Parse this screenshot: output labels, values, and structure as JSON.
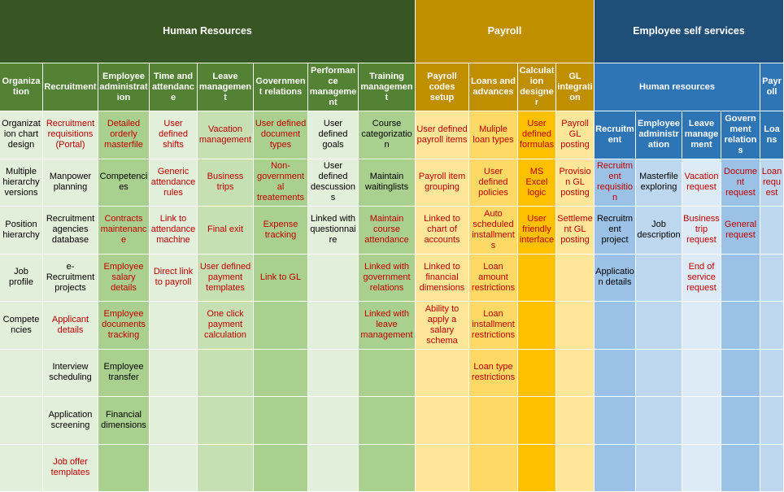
{
  "sections": [
    {
      "title": "Human Resources",
      "columns": [
        {
          "title": "Organization",
          "items": [
            "Organization chart design",
            "Multiple hierarchy versions",
            "Position hierarchy",
            "Job profile",
            "Competencies"
          ]
        },
        {
          "title": "Recruitment",
          "items": [
            "Recruitment requisitions (Portal)",
            "Manpower planning",
            "Recruitment agencies database",
            "e-Recruitment projects",
            "Applicant details",
            "Interview scheduling",
            "Application screening",
            "Job offer templates"
          ]
        },
        {
          "title": "Employee administration",
          "items": [
            "Detailed orderly masterfile",
            "Competencies",
            "Contracts maintenance",
            "Employee salary details",
            "Employee documents tracking",
            "Employee transfer",
            "Financial dimensions"
          ]
        },
        {
          "title": "Time and attendance",
          "items": [
            "User defined shifts",
            "Generic attendance rules",
            "Link to attendance machine",
            "Direct link to payroll"
          ]
        },
        {
          "title": "Leave management",
          "items": [
            "Vacation management",
            "Business trips",
            "Final exit",
            "User defined payment templates",
            "One click payment calculation"
          ]
        },
        {
          "title": "Government relations",
          "items": [
            "User defined document types",
            "Non-governmental treatements",
            "Expense tracking",
            "Link to GL"
          ]
        },
        {
          "title": "Performance management",
          "items": [
            "User defined goals",
            "User defined descussions",
            "Linked with questionnaire"
          ]
        },
        {
          "title": "Training management",
          "items": [
            "Course categorization",
            "Maintain waitinglists",
            "Maintain course attendance",
            "Linked with government relations",
            "Linked with leave management"
          ]
        }
      ]
    },
    {
      "title": "Payroll",
      "columns": [
        {
          "title": "Payroll codes setup",
          "items": [
            "User defined payroll items",
            "Payroll item grouping",
            "Linked to chart of accounts",
            "Linked to financial dimensions",
            "Ability to apply a salary schema"
          ]
        },
        {
          "title": "Loans and advances",
          "items": [
            "Muliple loan types",
            "User defined policies",
            "Auto scheduled installments",
            "Loan amount restrictions",
            "Loan installment restrictions",
            "Loan type restrictions"
          ]
        },
        {
          "title": "Calculation designer",
          "items": [
            "User defined formulas",
            "MS Excel logic",
            "User friendly interface"
          ]
        },
        {
          "title": "GL integration",
          "items": [
            "Payroll GL posting",
            "Provision GL posting",
            "Settlement GL posting"
          ]
        }
      ]
    },
    {
      "title": "Employee self services",
      "subgroups": [
        {
          "title": "Human resources",
          "columns": [
            {
              "title": "Recruitment",
              "items": [
                "Recruitment requisition",
                "Recruitment project",
                "Application details"
              ]
            },
            {
              "title": "Employee administration",
              "items": [
                "Masterfile exploring",
                "Job description"
              ]
            },
            {
              "title": "Leave management",
              "items": [
                "Vacation request",
                "Business trip request",
                "End of service request"
              ]
            },
            {
              "title": "Government relations",
              "items": [
                "Document request",
                "General request"
              ]
            }
          ]
        },
        {
          "title": "Payroll",
          "columns": [
            {
              "title": "Loans",
              "items": [
                "Loan request"
              ]
            }
          ]
        }
      ]
    }
  ]
}
